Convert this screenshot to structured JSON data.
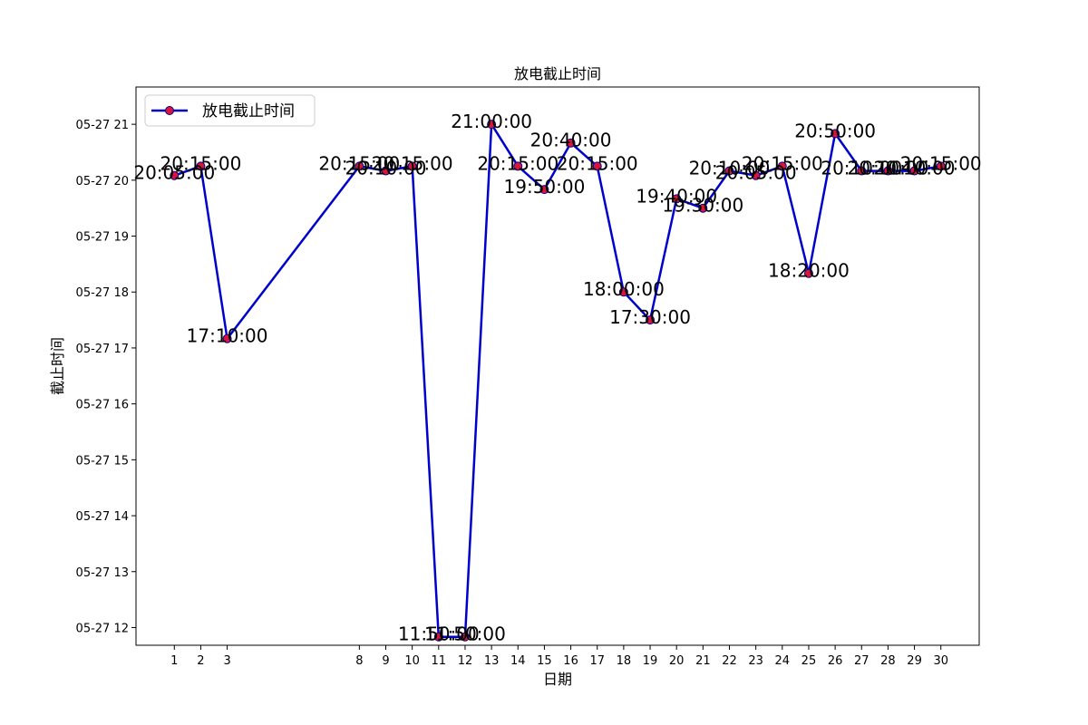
{
  "chart_data": {
    "type": "line",
    "title": "放电截止时间",
    "xlabel": "日期",
    "ylabel": "截止时间",
    "x": [
      1,
      2,
      3,
      8,
      9,
      10,
      11,
      12,
      13,
      14,
      15,
      16,
      17,
      18,
      19,
      20,
      21,
      22,
      23,
      24,
      25,
      26,
      27,
      28,
      29,
      30
    ],
    "y": [
      "20:05:00",
      "20:15:00",
      "17:10:00",
      "20:15:00",
      "20:10:00",
      "20:15:00",
      "11:50:00",
      "11:50:00",
      "21:00:00",
      "20:15:00",
      "19:50:00",
      "20:40:00",
      "20:15:00",
      "18:00:00",
      "17:30:00",
      "19:40:00",
      "19:30:00",
      "20:10:00",
      "20:05:00",
      "20:15:00",
      "18:20:00",
      "20:50:00",
      "20:10:00",
      "20:10:00",
      "20:10:00",
      "20:15:00"
    ],
    "x_ticks": [
      "1",
      "2",
      "3",
      "8",
      "9",
      "10",
      "11",
      "12",
      "13",
      "14",
      "15",
      "16",
      "17",
      "18",
      "19",
      "20",
      "21",
      "22",
      "23",
      "24",
      "25",
      "26",
      "27",
      "28",
      "29",
      "30"
    ],
    "y_ticks": [
      "05-27 12",
      "05-27 13",
      "05-27 14",
      "05-27 15",
      "05-27 16",
      "05-27 17",
      "05-27 18",
      "05-27 19",
      "05-27 20",
      "05-27 21"
    ],
    "y_tick_hours": [
      12,
      13,
      14,
      15,
      16,
      17,
      18,
      19,
      20,
      21
    ],
    "xlim": [
      -0.45,
      31.45
    ],
    "ylim": [
      "11:41:00",
      "21:40:00"
    ],
    "legend": {
      "label": "放电截止时间",
      "position": "top-left"
    },
    "grid": false,
    "colors": {
      "line": "#0000cd",
      "marker_face": "#dc143c",
      "marker_edge": "#00008b"
    }
  }
}
